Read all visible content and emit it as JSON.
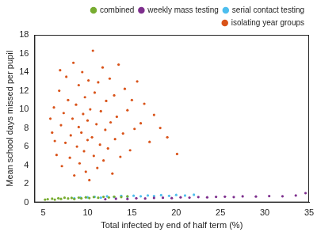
{
  "chart_data": {
    "type": "scatter",
    "x_label": "Total infected by end of half term (%)",
    "y_label": "Mean school days missed per pupil",
    "xlim": [
      4,
      35
    ],
    "xticks": [
      5,
      10,
      15,
      20,
      25,
      30,
      35
    ],
    "ylim": [
      0,
      18
    ],
    "yticks": [
      0,
      2,
      4,
      6,
      8,
      10,
      12,
      14,
      16,
      18
    ],
    "grid": false,
    "legend": "top-right",
    "marker": "circle",
    "series": [
      {
        "name": "isolating year groups",
        "color": "#d95319",
        "x": [
          6.0,
          6.2,
          6.5,
          6.8,
          7.0,
          7.1,
          7.3,
          7.5,
          7.6,
          7.8,
          8.0,
          8.1,
          8.3,
          8.4,
          8.5,
          8.7,
          8.8,
          9.0,
          9.0,
          9.1,
          9.3,
          9.4,
          9.5,
          9.6,
          9.7,
          9.8,
          10.0,
          10.0,
          10.1,
          10.2,
          10.3,
          10.5,
          10.6,
          10.7,
          10.8,
          11.0,
          11.1,
          11.2,
          11.4,
          11.5,
          11.7,
          11.8,
          12.0,
          12.1,
          12.3,
          12.5,
          12.6,
          12.8,
          13.0,
          13.1,
          13.3,
          13.5,
          13.7,
          14.0,
          14.2,
          14.5,
          14.8,
          15.0,
          15.3,
          15.6,
          16.0,
          16.4,
          17.0,
          17.5,
          18.2,
          19.0,
          20.1,
          5.8,
          6.3,
          6.9
        ],
        "values": [
          7.5,
          10.2,
          5.1,
          12.0,
          8.3,
          3.9,
          9.6,
          6.4,
          13.5,
          11.0,
          4.8,
          7.2,
          9.0,
          15.0,
          2.9,
          10.5,
          6.0,
          8.1,
          12.6,
          4.2,
          7.5,
          14.0,
          9.5,
          5.5,
          11.3,
          3.3,
          8.8,
          6.7,
          13.1,
          2.4,
          10.0,
          7.0,
          16.3,
          5.0,
          11.8,
          8.4,
          3.7,
          12.9,
          6.2,
          9.8,
          14.5,
          4.5,
          7.8,
          10.9,
          5.8,
          13.3,
          8.6,
          3.1,
          11.5,
          6.8,
          9.2,
          14.8,
          4.9,
          7.4,
          12.2,
          9.9,
          5.6,
          11.0,
          7.9,
          13.0,
          8.5,
          10.6,
          6.5,
          9.4,
          8.0,
          7.0,
          5.2,
          9.0,
          6.6,
          14.2
        ]
      },
      {
        "name": "serial contact testing",
        "color": "#4dbeee",
        "x": [
          8.5,
          9.2,
          10.0,
          10.8,
          11.5,
          12.2,
          13.0,
          13.8,
          14.5,
          15.2,
          16.0,
          16.8,
          17.5,
          18.3,
          19.2,
          20.0,
          21.0,
          22.0
        ],
        "values": [
          0.45,
          0.5,
          0.55,
          0.6,
          0.52,
          0.65,
          0.58,
          0.7,
          0.62,
          0.72,
          0.66,
          0.75,
          0.68,
          0.78,
          0.7,
          0.8,
          0.74,
          0.82
        ]
      },
      {
        "name": "weekly mass testing",
        "color": "#7e2f8e",
        "x": [
          12.0,
          13.2,
          14.5,
          15.5,
          16.5,
          17.5,
          18.5,
          19.5,
          20.5,
          21.5,
          22.5,
          23.5,
          24.5,
          25.5,
          26.5,
          27.5,
          29.0,
          30.5,
          32.0,
          33.5,
          34.6
        ],
        "values": [
          0.35,
          0.4,
          0.38,
          0.45,
          0.42,
          0.48,
          0.5,
          0.46,
          0.55,
          0.52,
          0.58,
          0.55,
          0.6,
          0.62,
          0.58,
          0.65,
          0.63,
          0.68,
          0.66,
          0.75,
          1.0
        ]
      },
      {
        "name": "combined",
        "color": "#77ac30",
        "x": [
          5.2,
          5.5,
          6.0,
          6.3,
          6.7,
          7.0,
          7.4,
          7.8,
          8.2,
          8.5,
          9.0,
          9.3,
          9.8,
          10.2,
          10.7,
          11.2,
          11.8,
          12.4,
          13.0,
          13.8,
          14.5
        ],
        "values": [
          0.3,
          0.35,
          0.4,
          0.3,
          0.45,
          0.38,
          0.5,
          0.42,
          0.48,
          0.36,
          0.52,
          0.44,
          0.55,
          0.47,
          0.58,
          0.5,
          0.6,
          0.53,
          0.62,
          0.58,
          0.65
        ]
      }
    ]
  }
}
